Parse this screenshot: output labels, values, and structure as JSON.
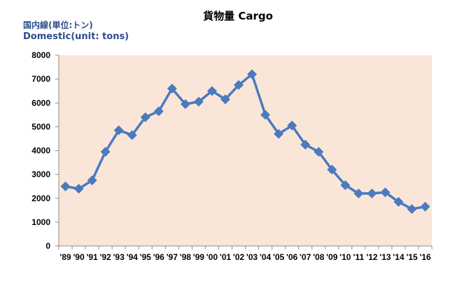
{
  "chart_data": {
    "type": "line",
    "title": "貨物量 Cargo",
    "subtitle_ja": "国内線(単位:トン)",
    "subtitle_en": "Domestic(unit: tons)",
    "ylim": [
      0,
      8000
    ],
    "y_ticks": [
      "0",
      "1000",
      "2000",
      "3000",
      "4000",
      "5000",
      "6000",
      "7000",
      "8000"
    ],
    "categories": [
      "'89",
      "'90",
      "'91",
      "'92",
      "'93",
      "'94",
      "'95",
      "'96",
      "'97",
      "'98",
      "'99",
      "'00",
      "'01",
      "'02",
      "'03",
      "'04",
      "'05",
      "'06",
      "'07",
      "'08",
      "'09",
      "'10",
      "'11",
      "'12",
      "'13",
      "'14",
      "'15",
      "'16"
    ],
    "series": [
      {
        "values": [
          2500,
          2400,
          2750,
          3950,
          4850,
          4650,
          5400,
          5650,
          6600,
          5950,
          6050,
          6500,
          6150,
          6750,
          7200,
          5500,
          4700,
          5050,
          4250,
          3950,
          3200,
          2550,
          2200,
          2200,
          2250,
          1850,
          1550,
          1650
        ],
        "color": "#4a7abf"
      }
    ],
    "plot_background": "#fae6d8",
    "grid": false
  }
}
